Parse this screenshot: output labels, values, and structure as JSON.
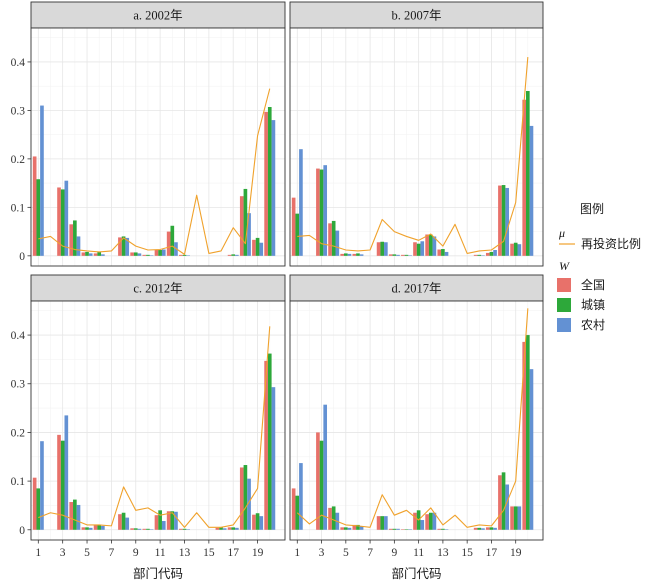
{
  "chart_data": [
    {
      "type": "bar",
      "title": "a. 2002年",
      "xlabel": "",
      "ylabel": "",
      "categories": [
        1,
        2,
        3,
        4,
        5,
        6,
        7,
        8,
        9,
        10,
        11,
        12,
        13,
        14,
        15,
        16,
        17,
        18,
        19,
        20
      ],
      "xticks": [
        1,
        3,
        5,
        7,
        9,
        11,
        13,
        15,
        17,
        19
      ],
      "yticks": [
        0,
        0.1,
        0.2,
        0.3,
        0.4
      ],
      "xlim": [
        0.4,
        21.25
      ],
      "ylim": [
        -0.021,
        0.47
      ],
      "grid": true,
      "series": [
        {
          "name": "全国",
          "values": [
            0.205,
            0,
            0.141,
            0.065,
            0.007,
            0.005,
            0,
            0.038,
            0.007,
            0.002,
            0.012,
            0.05,
            0.002,
            0,
            0,
            0,
            0.002,
            0.123,
            0.033,
            0.297
          ]
        },
        {
          "name": "城镇",
          "values": [
            0.158,
            0,
            0.137,
            0.073,
            0.008,
            0.009,
            0,
            0.04,
            0.007,
            0.002,
            0.012,
            0.062,
            0.002,
            0,
            0,
            0,
            0.003,
            0.138,
            0.037,
            0.307
          ]
        },
        {
          "name": "农村",
          "values": [
            0.31,
            0,
            0.155,
            0.04,
            0.005,
            0.003,
            0,
            0.037,
            0.005,
            0.001,
            0.013,
            0.028,
            0.001,
            0,
            0,
            0,
            0.002,
            0.088,
            0.027,
            0.28
          ]
        }
      ],
      "line": {
        "name": "再投资比例",
        "values": [
          0.035,
          0.04,
          0.02,
          0.013,
          0.01,
          0.008,
          0.01,
          0.037,
          0.02,
          0.012,
          0.013,
          0.02,
          0.003,
          0.125,
          0.005,
          0.01,
          0.058,
          0.025,
          0.248,
          0.345
        ]
      }
    },
    {
      "type": "bar",
      "title": "b. 2007年",
      "xlabel": "",
      "ylabel": "",
      "categories": [
        1,
        2,
        3,
        4,
        5,
        6,
        7,
        8,
        9,
        10,
        11,
        12,
        13,
        14,
        15,
        16,
        17,
        18,
        19,
        20
      ],
      "xticks": [
        1,
        3,
        5,
        7,
        9,
        11,
        13,
        15,
        17,
        19
      ],
      "yticks": [
        0,
        0.1,
        0.2,
        0.3,
        0.4
      ],
      "xlim": [
        0.4,
        21.25
      ],
      "ylim": [
        -0.021,
        0.47
      ],
      "grid": true,
      "series": [
        {
          "name": "全国",
          "values": [
            0.12,
            0,
            0.18,
            0.067,
            0.004,
            0.004,
            0,
            0.028,
            0.003,
            0.002,
            0.028,
            0.044,
            0.013,
            0,
            0,
            0.002,
            0.006,
            0.145,
            0.025,
            0.322
          ]
        },
        {
          "name": "城镇",
          "values": [
            0.087,
            0,
            0.178,
            0.072,
            0.005,
            0.005,
            0,
            0.029,
            0.003,
            0.002,
            0.025,
            0.044,
            0.014,
            0,
            0,
            0.002,
            0.008,
            0.146,
            0.027,
            0.34
          ]
        },
        {
          "name": "农村",
          "values": [
            0.22,
            0,
            0.187,
            0.052,
            0.004,
            0.003,
            0,
            0.028,
            0.002,
            0.001,
            0.03,
            0.04,
            0.008,
            0,
            0,
            0.001,
            0.012,
            0.14,
            0.024,
            0.268
          ]
        }
      ],
      "line": {
        "name": "再投资比例",
        "values": [
          0.04,
          0.042,
          0.025,
          0.02,
          0.012,
          0.01,
          0.012,
          0.075,
          0.05,
          0.04,
          0.032,
          0.045,
          0.02,
          0.065,
          0.005,
          0.01,
          0.012,
          0.03,
          0.11,
          0.41
        ]
      }
    },
    {
      "type": "bar",
      "title": "c. 2012年",
      "xlabel": "部门代码",
      "ylabel": "",
      "categories": [
        1,
        2,
        3,
        4,
        5,
        6,
        7,
        8,
        9,
        10,
        11,
        12,
        13,
        14,
        15,
        16,
        17,
        18,
        19,
        20
      ],
      "xticks": [
        1,
        3,
        5,
        7,
        9,
        11,
        13,
        15,
        17,
        19
      ],
      "yticks": [
        0,
        0.1,
        0.2,
        0.3,
        0.4
      ],
      "xlim": [
        0.4,
        21.25
      ],
      "ylim": [
        -0.021,
        0.47
      ],
      "grid": true,
      "series": [
        {
          "name": "全国",
          "values": [
            0.107,
            0,
            0.195,
            0.057,
            0.005,
            0.01,
            0,
            0.032,
            0.003,
            0.002,
            0.03,
            0.038,
            0.002,
            0,
            0,
            0.004,
            0.005,
            0.128,
            0.031,
            0.347
          ]
        },
        {
          "name": "城镇",
          "values": [
            0.085,
            0,
            0.183,
            0.062,
            0.005,
            0.01,
            0,
            0.035,
            0.003,
            0.002,
            0.04,
            0.038,
            0.002,
            0,
            0,
            0.005,
            0.005,
            0.133,
            0.034,
            0.362
          ]
        },
        {
          "name": "农村",
          "values": [
            0.182,
            0,
            0.235,
            0.051,
            0.004,
            0.008,
            0,
            0.025,
            0.002,
            0.001,
            0.018,
            0.037,
            0.001,
            0,
            0,
            0.003,
            0.004,
            0.105,
            0.028,
            0.293
          ]
        }
      ],
      "line": {
        "name": "再投资比例",
        "values": [
          0.025,
          0.035,
          0.03,
          0.02,
          0.01,
          0.01,
          0.008,
          0.088,
          0.04,
          0.045,
          0.03,
          0.035,
          0.005,
          0.035,
          0.005,
          0.005,
          0.01,
          0.045,
          0.085,
          0.418
        ]
      }
    },
    {
      "type": "bar",
      "title": "d. 2017年",
      "xlabel": "部门代码",
      "ylabel": "",
      "categories": [
        1,
        2,
        3,
        4,
        5,
        6,
        7,
        8,
        9,
        10,
        11,
        12,
        13,
        14,
        15,
        16,
        17,
        18,
        19,
        20
      ],
      "xticks": [
        1,
        3,
        5,
        7,
        9,
        11,
        13,
        15,
        17,
        19
      ],
      "yticks": [
        0,
        0.1,
        0.2,
        0.3,
        0.4
      ],
      "xlim": [
        0.4,
        21.25
      ],
      "ylim": [
        -0.021,
        0.47
      ],
      "grid": true,
      "series": [
        {
          "name": "全国",
          "values": [
            0.085,
            0,
            0.2,
            0.045,
            0.005,
            0.01,
            0,
            0.028,
            0.002,
            0.001,
            0.035,
            0.032,
            0.002,
            0,
            0,
            0.004,
            0.005,
            0.112,
            0.048,
            0.386
          ]
        },
        {
          "name": "城镇",
          "values": [
            0.07,
            0,
            0.183,
            0.048,
            0.005,
            0.01,
            0,
            0.028,
            0.002,
            0.001,
            0.04,
            0.035,
            0.002,
            0,
            0,
            0.004,
            0.005,
            0.118,
            0.048,
            0.4
          ]
        },
        {
          "name": "农村",
          "values": [
            0.137,
            0,
            0.257,
            0.035,
            0.004,
            0.007,
            0,
            0.028,
            0.002,
            0.001,
            0.02,
            0.035,
            0.001,
            0,
            0,
            0.003,
            0.004,
            0.093,
            0.048,
            0.33
          ]
        }
      ],
      "line": {
        "name": "再投资比例",
        "values": [
          0.035,
          0.012,
          0.03,
          0.02,
          0.01,
          0.008,
          0.005,
          0.072,
          0.03,
          0.04,
          0.02,
          0.045,
          0.01,
          0.03,
          0.005,
          0.01,
          0.008,
          0.04,
          0.1,
          0.455
        ]
      }
    }
  ],
  "legend": {
    "title": "图例",
    "line_symbol": "μ",
    "bar_symbol": "W",
    "placement": "right"
  },
  "colors": {
    "series": [
      "#E8716A",
      "#2DA83A",
      "#6391D3"
    ],
    "line": "#F0A22C"
  }
}
